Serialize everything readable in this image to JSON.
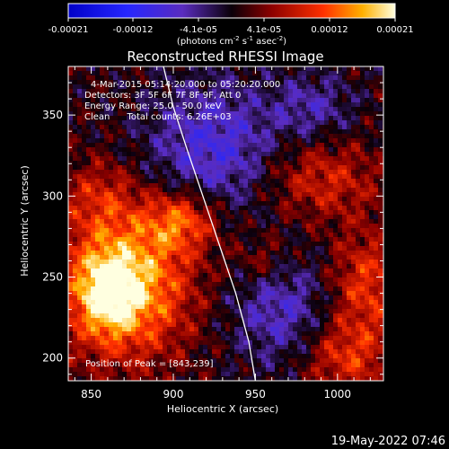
{
  "chart_data": {
    "type": "heatmap",
    "title": "Reconstructed RHESSI Image",
    "xlabel": "Heliocentric X (arcsec)",
    "ylabel": "Heliocentric Y (arcsec)",
    "xlim": [
      836,
      1028
    ],
    "ylim": [
      186,
      380
    ],
    "xticks": [
      850,
      900,
      950,
      1000
    ],
    "yticks": [
      200,
      250,
      300,
      350
    ],
    "colorbar": {
      "range": [
        -0.00021,
        0.00021
      ],
      "tick_labels": [
        "-0.00021",
        "-0.00012",
        "-4.1e-05",
        "4.1e-05",
        "0.00012",
        "0.00021"
      ],
      "unit_label_parts": [
        "(photons cm",
        "-2",
        " s",
        "-1",
        " asec",
        "-2",
        ")"
      ]
    },
    "info_lines": [
      "4-Mar-2015 05:14:20.000 to 05:20:20.000",
      "Detectors: 3F 5F 6F 7F 8F 9F, Att 0",
      "Energy Range: 25.0 - 50.0 keV",
      "Clean      Total counts: 6.26E+03"
    ],
    "peak_label": "Position of Peak = [843,239]",
    "peak": {
      "x": 843,
      "y": 239
    },
    "limb_curve": [
      [
        894,
        380
      ],
      [
        900,
        355
      ],
      [
        908,
        330
      ],
      [
        918,
        300
      ],
      [
        928,
        270
      ],
      [
        938,
        240
      ],
      [
        946,
        210
      ],
      [
        950,
        186
      ]
    ],
    "timestamp": "19-May-2022 07:46",
    "colors": {
      "curve": "#ffffff",
      "background": "#000000"
    }
  }
}
